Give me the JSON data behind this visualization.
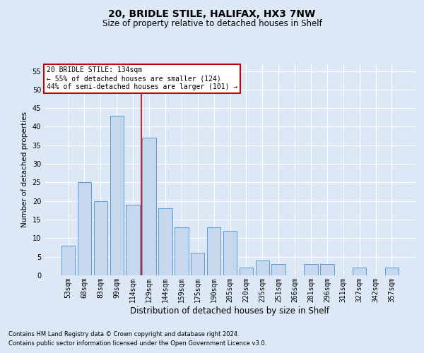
{
  "title1": "20, BRIDLE STILE, HALIFAX, HX3 7NW",
  "title2": "Size of property relative to detached houses in Shelf",
  "xlabel": "Distribution of detached houses by size in Shelf",
  "ylabel": "Number of detached properties",
  "categories": [
    "53sqm",
    "68sqm",
    "83sqm",
    "99sqm",
    "114sqm",
    "129sqm",
    "144sqm",
    "159sqm",
    "175sqm",
    "190sqm",
    "205sqm",
    "220sqm",
    "235sqm",
    "251sqm",
    "266sqm",
    "281sqm",
    "296sqm",
    "311sqm",
    "327sqm",
    "342sqm",
    "357sqm"
  ],
  "values": [
    8,
    25,
    20,
    43,
    19,
    37,
    18,
    13,
    6,
    13,
    12,
    2,
    4,
    3,
    0,
    3,
    3,
    0,
    2,
    0,
    2
  ],
  "bar_color": "#c5d8ed",
  "bar_edge_color": "#5b9bd5",
  "ref_line_index": 4.5,
  "annotation_line1": "20 BRIDLE STILE: 134sqm",
  "annotation_line2": "← 55% of detached houses are smaller (124)",
  "annotation_line3": "44% of semi-detached houses are larger (101) →",
  "annotation_box_bg": "#ffffff",
  "annotation_box_edge": "#cc0000",
  "ylim_max": 57,
  "yticks": [
    0,
    5,
    10,
    15,
    20,
    25,
    30,
    35,
    40,
    45,
    50,
    55
  ],
  "footnote1": "Contains HM Land Registry data © Crown copyright and database right 2024.",
  "footnote2": "Contains public sector information licensed under the Open Government Licence v3.0.",
  "background_color": "#dce8f5",
  "grid_color": "#ffffff",
  "ref_line_color": "#cc0000",
  "title1_fontsize": 10,
  "title2_fontsize": 8.5,
  "ylabel_fontsize": 7.5,
  "xlabel_fontsize": 8.5,
  "tick_fontsize": 7,
  "annot_fontsize": 7,
  "footnote_fontsize": 6
}
